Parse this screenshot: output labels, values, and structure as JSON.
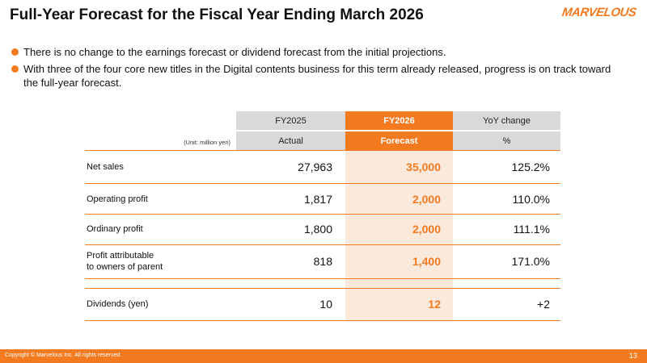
{
  "header": {
    "title": "Full-Year Forecast for the Fiscal Year Ending March 2026",
    "logo": "MARVELOUS"
  },
  "bullets": [
    "There is no change to the earnings forecast or dividend forecast from the initial projections.",
    "With three of the four core new titles in the Digital contents business for this term already released, progress is on track toward the full-year forecast."
  ],
  "table": {
    "unit": "(Unit: million yen)",
    "columns": [
      {
        "top": "FY2025",
        "sub": "Actual"
      },
      {
        "top": "FY2026",
        "sub": "Forecast"
      },
      {
        "top": "YoY change",
        "sub": "%"
      }
    ],
    "rows": [
      [
        "Net sales",
        "27,963",
        "35,000",
        "125.2%"
      ],
      [
        "Operating profit",
        "1,817",
        "2,000",
        "110.0%"
      ],
      [
        "Ordinary profit",
        "1,800",
        "2,000",
        "111.1%"
      ],
      [
        "Profit attributable\nto owners of parent",
        "818",
        "1,400",
        "171.0%"
      ],
      [
        "Dividends (yen)",
        "10",
        "12",
        "+2"
      ]
    ]
  },
  "footer": {
    "copyright": "Copyright © Marvelous Inc. All rights reserved.",
    "page": "13"
  }
}
